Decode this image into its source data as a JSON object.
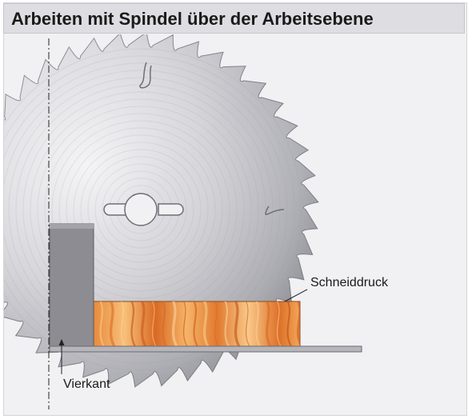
{
  "title": "Arbeiten mit Spindel über der Arbeitsebene",
  "labels": {
    "cutting_pressure": "Schneiddruck",
    "square": "Vierkant"
  },
  "colors": {
    "title_bg": "#dedee2",
    "panel_bg": "#f1f1f3",
    "blade_light": "#e9e9ec",
    "blade_dark": "#8e8e96",
    "fence": "#8c8c92",
    "table": "#b5b5ba",
    "wood_light": "#f6b26a",
    "wood_dark": "#c8541a"
  }
}
